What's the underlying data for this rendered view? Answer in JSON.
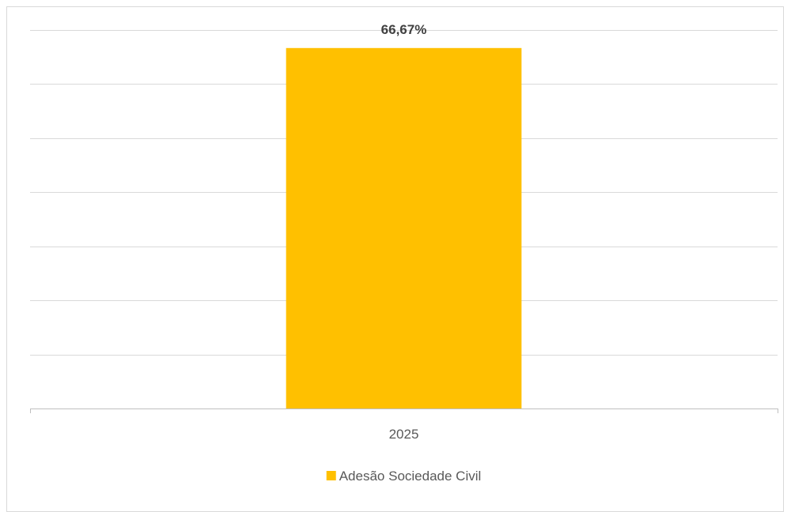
{
  "chart_data": {
    "type": "bar",
    "title": "",
    "xlabel": "",
    "ylabel": "",
    "categories": [
      "2025"
    ],
    "series": [
      {
        "name": "Adesão Sociedade Civil",
        "values": [
          66.67
        ],
        "data_labels": [
          "66,67%"
        ],
        "color": "#FFC000"
      }
    ],
    "ylim": [
      0,
      70
    ],
    "y_tick_step": 10,
    "y_tick_labels_visible": false,
    "grid": true,
    "legend_position": "bottom",
    "colors": {
      "bar": "#FFC000",
      "grid": "#d9d9d9",
      "axis": "#bfbfbf",
      "label": "#404040",
      "text": "#595959"
    }
  }
}
